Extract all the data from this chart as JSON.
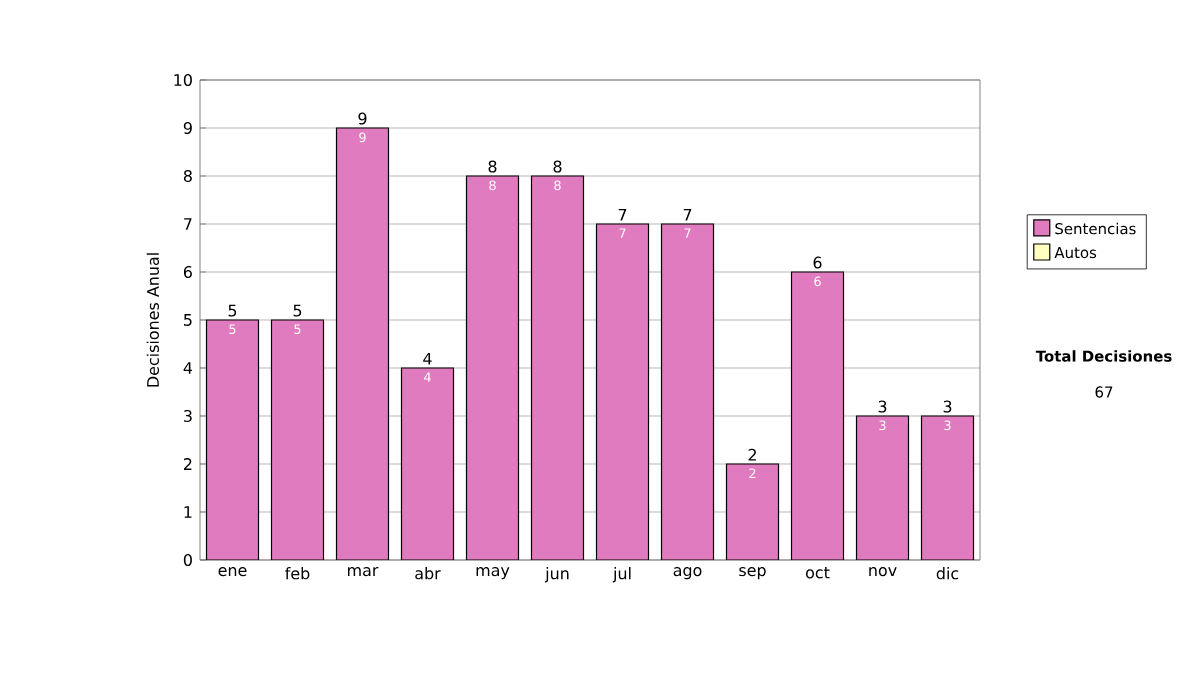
{
  "chart_data": {
    "type": "bar",
    "ylabel": "Decisiones Anual",
    "categories": [
      "ene",
      "feb",
      "mar",
      "abr",
      "may",
      "jun",
      "jul",
      "ago",
      "sep",
      "oct",
      "nov",
      "dic"
    ],
    "series": [
      {
        "name": "Sentencias",
        "color": "#e07bbf",
        "values": [
          5,
          5,
          9,
          4,
          8,
          8,
          7,
          7,
          2,
          6,
          3,
          3
        ]
      },
      {
        "name": "Autos",
        "color": "#ffffc0",
        "values": [
          null,
          null,
          null,
          null,
          null,
          null,
          null,
          null,
          null,
          null,
          null,
          null
        ]
      }
    ],
    "stacked": true,
    "ylim": [
      0,
      10
    ],
    "yticks": [
      0,
      1,
      2,
      3,
      4,
      5,
      6,
      7,
      8,
      9,
      10
    ],
    "grid": "y",
    "legend": "right",
    "data_labels": true,
    "totals": [
      "5",
      "5",
      "9",
      "4",
      "8",
      "8",
      "7",
      "7",
      "2",
      "6",
      "3",
      "3"
    ],
    "annotations": [
      "Total Decisiones",
      "67"
    ]
  }
}
